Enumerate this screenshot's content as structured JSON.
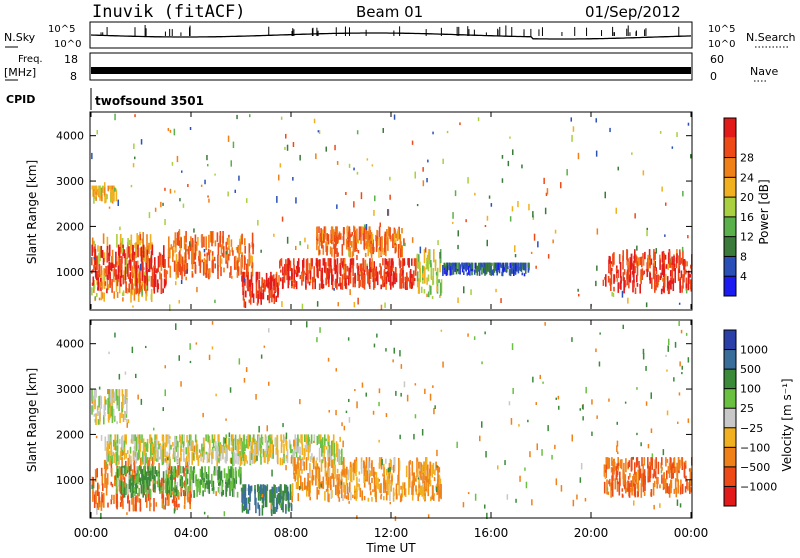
{
  "header": {
    "station": "Inuvik (fitACF)",
    "beam": "Beam 01",
    "date": "01/Sep/2012"
  },
  "strips": {
    "nsky_label": "N.Sky",
    "nsearch_label": "N.Search",
    "noise_ticks": [
      "10^5",
      "10^0"
    ],
    "freq_label": "Freq.",
    "freq_unit": "[MHz]",
    "freq_ticks": [
      "18",
      "8"
    ],
    "nave_label": "Nave",
    "nave_ticks": [
      "60",
      "0"
    ],
    "cpid_label": "CPID",
    "cpid_value": "twofsound 3501"
  },
  "axes": {
    "ylabel": "Slant Range [km]",
    "yticks": [
      "1000",
      "2000",
      "3000",
      "4000"
    ],
    "xticks": [
      "00:00",
      "04:00",
      "08:00",
      "12:00",
      "16:00",
      "20:00",
      "00:00"
    ],
    "xlabel": "Time UT"
  },
  "power_scale": {
    "label": "Power [dB]",
    "ticks": [
      "4",
      "8",
      "12",
      "16",
      "20",
      "24",
      "28"
    ],
    "colors": [
      "#1b1bf2",
      "#2a50b8",
      "#3a7a3a",
      "#5ab04a",
      "#a8d040",
      "#f0b020",
      "#f08018",
      "#ee4a18",
      "#e31a1a"
    ]
  },
  "velocity_scale": {
    "label": "Velocity [m s⁻¹]",
    "ticks": [
      "1000",
      "500",
      "100",
      "25",
      "−25",
      "−100",
      "−500",
      "−1000"
    ],
    "colors": [
      "#2a3fa8",
      "#3a6e9a",
      "#3a8a3a",
      "#6ac040",
      "#c8c8c8",
      "#f0b020",
      "#f08018",
      "#ee4a18",
      "#e31a1a"
    ]
  },
  "chart_data": {
    "type": "heatmap",
    "x_range_hours": [
      0,
      24
    ],
    "y_range_km": [
      180,
      4500
    ],
    "power_regions": [
      {
        "t0": 0.0,
        "t1": 2.5,
        "r0": 300,
        "r1": 2000,
        "db": 20
      },
      {
        "t0": 0.0,
        "t1": 3.0,
        "r0": 500,
        "r1": 1600,
        "db": 28
      },
      {
        "t0": 3.0,
        "t1": 6.5,
        "r0": 800,
        "r1": 1900,
        "db": 24
      },
      {
        "t0": 6.0,
        "t1": 7.5,
        "r0": 200,
        "r1": 1000,
        "db": 28
      },
      {
        "t0": 7.5,
        "t1": 13.0,
        "r0": 600,
        "r1": 1300,
        "db": 28
      },
      {
        "t0": 9.0,
        "t1": 12.5,
        "r0": 1300,
        "r1": 2000,
        "db": 24
      },
      {
        "t0": 13.0,
        "t1": 14.0,
        "r0": 400,
        "r1": 1500,
        "db": 16
      },
      {
        "t0": 14.0,
        "t1": 17.5,
        "r0": 900,
        "r1": 1200,
        "db": 6
      },
      {
        "t0": 20.5,
        "t1": 24.0,
        "r0": 500,
        "r1": 1500,
        "db": 28
      },
      {
        "t0": 0.0,
        "t1": 1.0,
        "r0": 2500,
        "r1": 2900,
        "db": 20
      }
    ],
    "velocity_regions": [
      {
        "t0": 0.0,
        "t1": 4.0,
        "r0": 300,
        "r1": 1500,
        "vel": -500
      },
      {
        "t0": 1.0,
        "t1": 6.0,
        "r0": 600,
        "r1": 1300,
        "vel": 100
      },
      {
        "t0": 0.5,
        "t1": 10.0,
        "r0": 1300,
        "r1": 2000,
        "vel": 0
      },
      {
        "t0": 6.0,
        "t1": 8.0,
        "r0": 200,
        "r1": 900,
        "vel": 500
      },
      {
        "t0": 8.0,
        "t1": 13.5,
        "r0": 500,
        "r1": 1500,
        "vel": -100
      },
      {
        "t0": 13.0,
        "t1": 14.0,
        "r0": 500,
        "r1": 1400,
        "vel": -100
      },
      {
        "t0": 20.5,
        "t1": 24.0,
        "r0": 600,
        "r1": 1500,
        "vel": -500
      },
      {
        "t0": 0.0,
        "t1": 1.5,
        "r0": 2200,
        "r1": 3000,
        "vel": 0
      }
    ]
  }
}
